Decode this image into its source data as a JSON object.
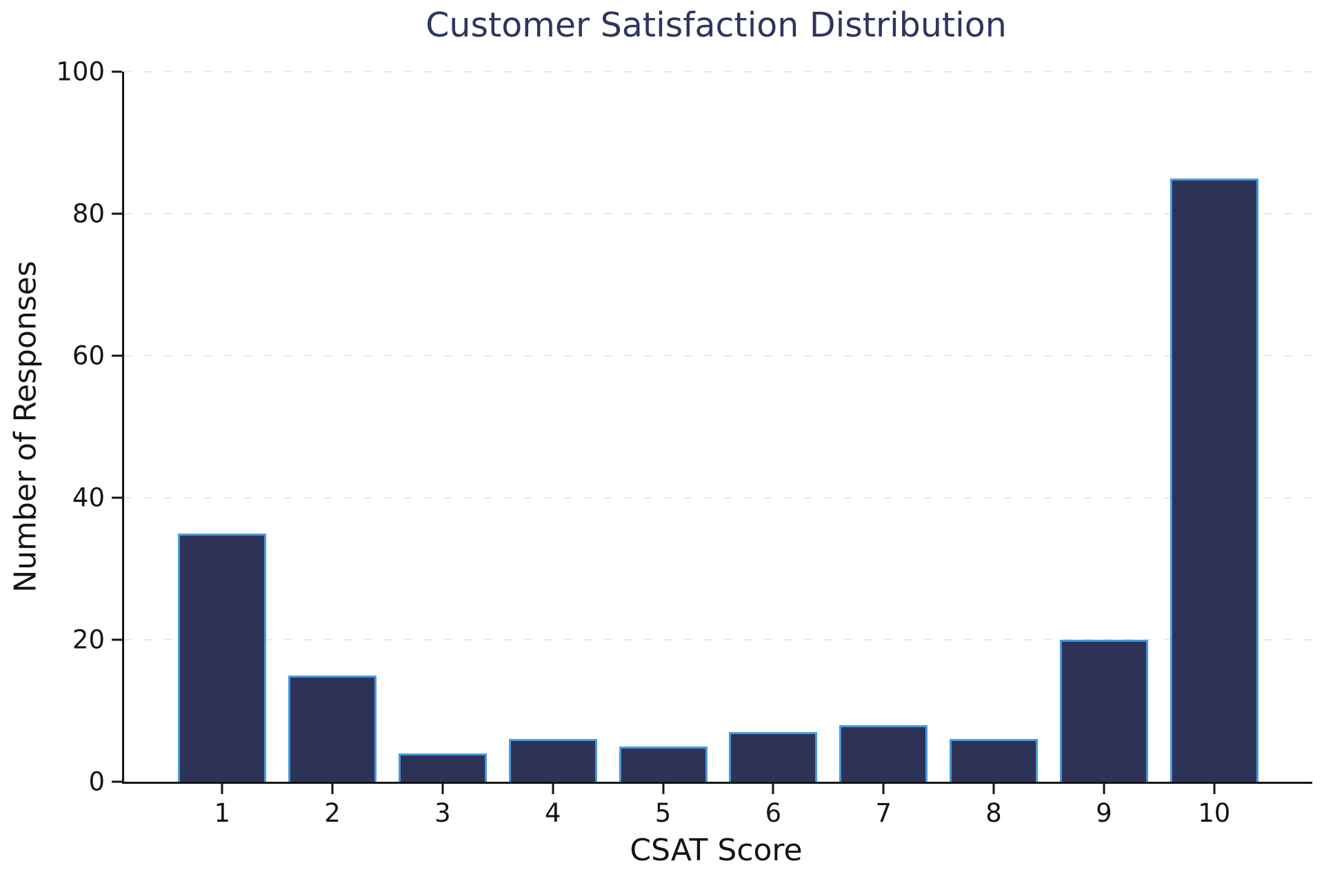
{
  "chart_data": {
    "type": "bar",
    "title": "Customer Satisfaction Distribution",
    "xlabel": "CSAT Score",
    "ylabel": "Number of Responses",
    "categories": [
      "1",
      "2",
      "3",
      "4",
      "5",
      "6",
      "7",
      "8",
      "9",
      "10"
    ],
    "values": [
      35,
      15,
      4,
      6,
      5,
      7,
      8,
      6,
      20,
      85
    ],
    "ylim": [
      0,
      100
    ],
    "yticks": [
      0,
      20,
      40,
      60,
      80,
      100
    ],
    "grid": "horizontal-dashed",
    "legend_position": "none",
    "colors": {
      "background": "#ffffff",
      "bar_fill": "#2d3257",
      "bar_edge": "#4499dd",
      "title": "#2e355e",
      "axis": "#141414",
      "tick_label": "#141414",
      "gridline": "#e8e8e8"
    }
  }
}
